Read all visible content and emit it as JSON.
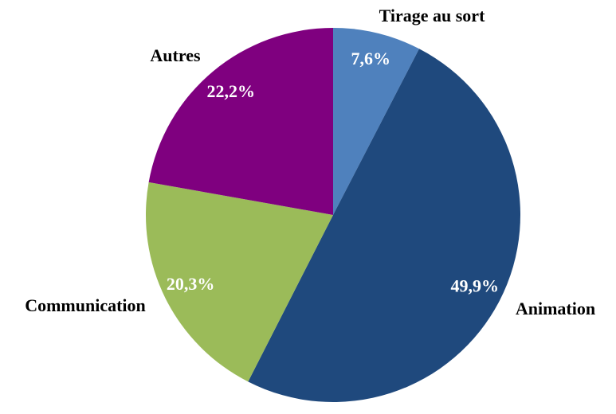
{
  "chart_data": {
    "type": "pie",
    "categories": [
      "Tirage au sort",
      "Animation",
      "Communication",
      "Autres"
    ],
    "values": [
      7.6,
      49.9,
      20.3,
      22.2
    ],
    "value_labels": [
      "7,6%",
      "49,9%",
      "20,3%",
      "22,2%"
    ],
    "colors": [
      "#4f81bd",
      "#1f497d",
      "#9bbb59",
      "#7f007f"
    ]
  }
}
